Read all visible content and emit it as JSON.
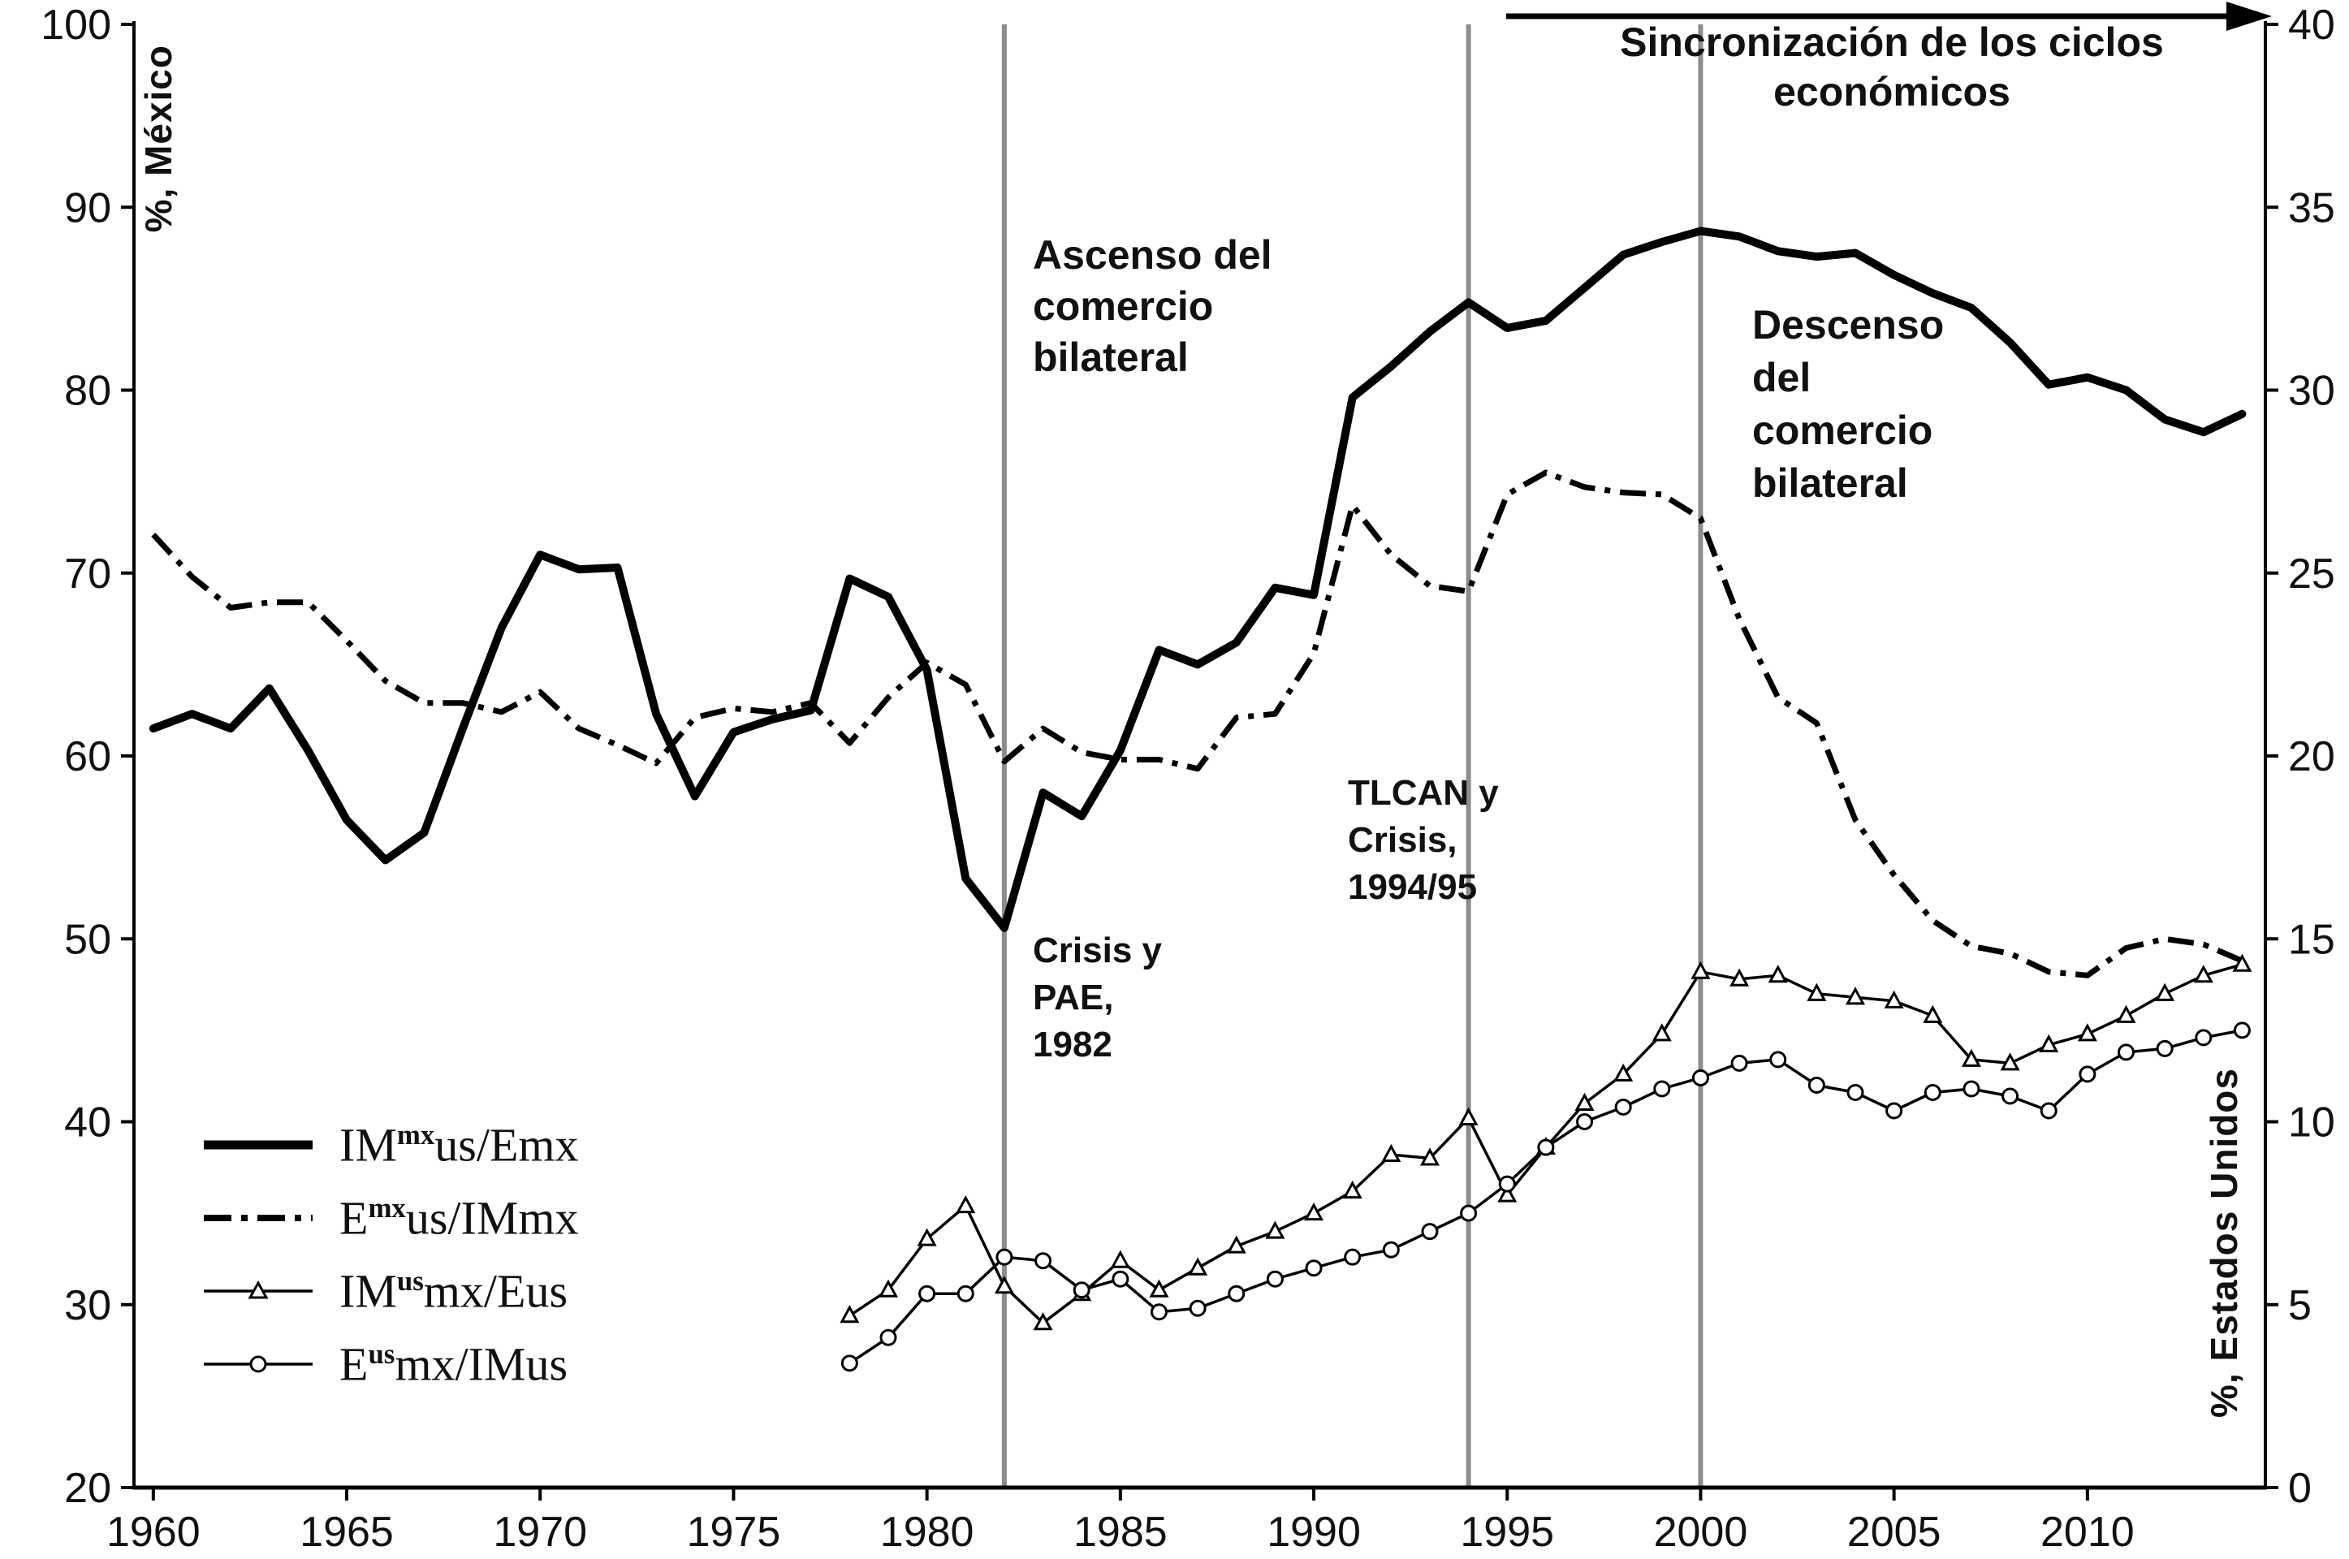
{
  "annotations": {
    "sync": "Sincronización  de los ciclos\neconómicos",
    "ascenso": "Ascenso del\ncomercio\nbilateral",
    "descenso": "Descenso\ndel\ncomercio\nbilateral",
    "crisis82": "Crisis y\nPAE,\n1982",
    "tlcan": "TLCAN y\nCrisis,\n1994/95"
  },
  "legend": {
    "items": [
      {
        "pre": "IM",
        "sup": "mx",
        "post": "us/Emx",
        "style": "solid-thick"
      },
      {
        "pre": "E",
        "sup": "mx",
        "post": "us/IMmx",
        "style": "dash-dot"
      },
      {
        "pre": "IM",
        "sup": "us",
        "post": "mx/Eus",
        "style": "triangle"
      },
      {
        "pre": "E",
        "sup": "us",
        "post": "mx/IMus",
        "style": "circle"
      }
    ]
  },
  "chart_data": {
    "type": "line",
    "title": "",
    "x_range": [
      1959.5,
      2014.6
    ],
    "x_ticks": [
      1960,
      1965,
      1970,
      1975,
      1980,
      1985,
      1990,
      1995,
      2000,
      2005,
      2010
    ],
    "event_lines": [
      1982,
      1994,
      2000
    ],
    "event_line_color": "#8c8c8c",
    "left_axis": {
      "label": "%,  México",
      "range": [
        20,
        100
      ],
      "ticks": [
        20,
        30,
        40,
        50,
        60,
        70,
        80,
        90,
        100
      ]
    },
    "right_axis": {
      "label": "%,  Estados Unidos",
      "range": [
        0,
        40
      ],
      "ticks": [
        0,
        5,
        10,
        15,
        20,
        25,
        30,
        35,
        40
      ]
    },
    "series": [
      {
        "name": "IM(mx)us/Emx",
        "axis": "left",
        "style": "solid-thick",
        "start_year": 1960,
        "values": [
          61.5,
          62.3,
          61.5,
          63.7,
          60.3,
          56.5,
          54.3,
          55.8,
          61.5,
          67.0,
          71.0,
          70.2,
          70.3,
          62.3,
          57.8,
          61.3,
          62.0,
          62.5,
          69.7,
          68.7,
          64.7,
          53.3,
          50.6,
          58.0,
          56.7,
          60.3,
          65.8,
          65.0,
          66.2,
          69.2,
          68.8,
          79.6,
          81.3,
          83.2,
          84.8,
          83.4,
          83.8,
          85.6,
          87.4,
          88.1,
          88.7,
          88.4,
          87.6,
          87.3,
          87.5,
          86.3,
          85.3,
          84.5,
          82.6,
          80.3,
          80.7,
          80.0,
          78.4,
          77.7,
          78.7
        ]
      },
      {
        "name": "E(mx)us/IMmx",
        "axis": "left",
        "style": "dash-dot",
        "start_year": 1960,
        "values": [
          72.1,
          69.8,
          68.1,
          68.4,
          68.4,
          66.3,
          64.1,
          62.9,
          62.9,
          62.4,
          63.5,
          61.5,
          60.6,
          59.6,
          62.1,
          62.6,
          62.4,
          62.9,
          60.7,
          63.2,
          65.1,
          63.9,
          59.7,
          61.5,
          60.2,
          59.8,
          59.8,
          59.3,
          62.1,
          62.3,
          65.6,
          73.7,
          71.0,
          69.3,
          69.0,
          74.3,
          75.5,
          74.7,
          74.4,
          74.3,
          73.0,
          67.5,
          63.2,
          61.8,
          56.5,
          53.5,
          51.0,
          49.6,
          49.2,
          48.2,
          48.0,
          49.5,
          50.0,
          49.7,
          48.8
        ]
      },
      {
        "name": "IM(us)mx/Eus",
        "axis": "right",
        "style": "triangle",
        "start_year": 1978,
        "values": [
          4.7,
          5.4,
          6.8,
          7.7,
          5.5,
          4.5,
          5.3,
          6.2,
          5.4,
          6.0,
          6.6,
          7.0,
          7.5,
          8.1,
          9.1,
          9.0,
          10.1,
          8.0,
          9.3,
          10.5,
          11.3,
          12.4,
          14.1,
          13.9,
          14.0,
          13.5,
          13.4,
          13.3,
          12.9,
          11.7,
          11.6,
          12.1,
          12.4,
          12.9,
          13.5,
          14.0,
          14.3
        ]
      },
      {
        "name": "E(us)mx/IMus",
        "axis": "right",
        "style": "circle",
        "start_year": 1978,
        "values": [
          3.4,
          4.1,
          5.3,
          5.3,
          6.3,
          6.2,
          5.4,
          5.7,
          4.8,
          4.9,
          5.3,
          5.7,
          6.0,
          6.3,
          6.5,
          7.0,
          7.5,
          8.3,
          9.3,
          10.0,
          10.4,
          10.9,
          11.2,
          11.6,
          11.7,
          11.0,
          10.8,
          10.3,
          10.8,
          10.9,
          10.7,
          10.3,
          11.3,
          11.9,
          12.0,
          12.3,
          12.5
        ]
      }
    ]
  }
}
